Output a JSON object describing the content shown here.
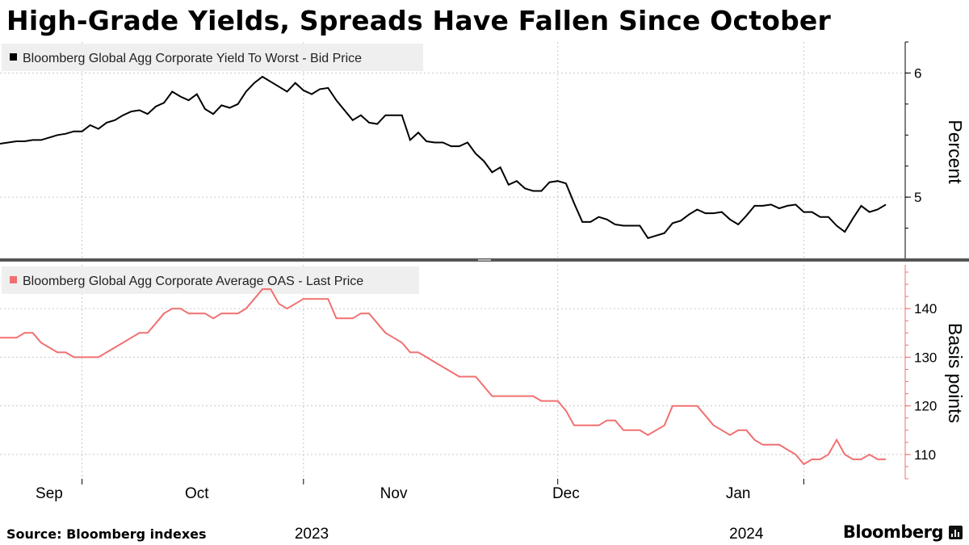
{
  "title": "High-Grade Yields, Spreads Have Fallen Since October",
  "source": "Source: Bloomberg indexes",
  "brand": "Bloomberg",
  "colors": {
    "series1": "#000000",
    "series2": "#f07070",
    "grid": "#c8c8c8",
    "legend_bg": "#efefef"
  },
  "chart_data": [
    {
      "type": "line",
      "title": "",
      "ylabel": "Percent",
      "ylim": [
        4.5,
        6.25
      ],
      "yticks": [
        5,
        6
      ],
      "y_axis_side": "right",
      "grid": true,
      "legend_position": "top-left",
      "x_start": "2023-08-18",
      "series": [
        {
          "name": "Bloomberg Global Agg Corporate Yield To Worst - Bid Price",
          "values": [
            5.43,
            5.44,
            5.45,
            5.45,
            5.46,
            5.46,
            5.48,
            5.5,
            5.51,
            5.53,
            5.53,
            5.58,
            5.55,
            5.6,
            5.62,
            5.66,
            5.69,
            5.7,
            5.67,
            5.73,
            5.76,
            5.85,
            5.81,
            5.78,
            5.83,
            5.71,
            5.67,
            5.74,
            5.72,
            5.75,
            5.85,
            5.92,
            5.97,
            5.93,
            5.89,
            5.85,
            5.92,
            5.86,
            5.83,
            5.87,
            5.88,
            5.78,
            5.7,
            5.62,
            5.66,
            5.6,
            5.59,
            5.66,
            5.66,
            5.66,
            5.46,
            5.52,
            5.45,
            5.44,
            5.44,
            5.41,
            5.41,
            5.44,
            5.35,
            5.29,
            5.2,
            5.24,
            5.1,
            5.13,
            5.07,
            5.05,
            5.05,
            5.12,
            5.13,
            5.11,
            4.95,
            4.8,
            4.8,
            4.84,
            4.82,
            4.78,
            4.77,
            4.77,
            4.77,
            4.67,
            4.69,
            4.71,
            4.79,
            4.81,
            4.86,
            4.9,
            4.87,
            4.87,
            4.88,
            4.82,
            4.78,
            4.85,
            4.93,
            4.93,
            4.94,
            4.91,
            4.93,
            4.94,
            4.88,
            4.88,
            4.84,
            4.84,
            4.77,
            4.72,
            4.83,
            4.93,
            4.88,
            4.9,
            4.94
          ]
        }
      ]
    },
    {
      "type": "line",
      "title": "",
      "ylabel": "Basis points",
      "ylim": [
        105,
        149
      ],
      "yticks": [
        110,
        120,
        130,
        140
      ],
      "y_axis_side": "right",
      "grid": true,
      "legend_position": "top-left",
      "x_start": "2023-08-18",
      "series": [
        {
          "name": "Bloomberg Global Agg Corporate Average OAS - Last Price",
          "values": [
            134,
            134,
            134,
            135,
            135,
            133,
            132,
            131,
            131,
            130,
            130,
            130,
            130,
            131,
            132,
            133,
            134,
            135,
            135,
            137,
            139,
            140,
            140,
            139,
            139,
            139,
            138,
            139,
            139,
            139,
            140,
            142,
            144,
            144,
            141,
            140,
            141,
            142,
            142,
            142,
            142,
            138,
            138,
            138,
            139,
            139,
            137,
            135,
            134,
            133,
            131,
            131,
            130,
            129,
            128,
            127,
            126,
            126,
            126,
            124,
            122,
            122,
            122,
            122,
            122,
            122,
            121,
            121,
            121,
            119,
            116,
            116,
            116,
            116,
            117,
            117,
            115,
            115,
            115,
            114,
            115,
            116,
            120,
            120,
            120,
            120,
            118,
            116,
            115,
            114,
            115,
            115,
            113,
            112,
            112,
            112,
            111,
            110,
            108,
            109,
            109,
            110,
            113,
            110,
            109,
            109,
            110,
            109,
            109
          ]
        }
      ]
    }
  ],
  "x_axis": {
    "month_labels": [
      "Sep",
      "Oct",
      "Nov",
      "Dec",
      "Jan"
    ],
    "month_tick_idx": [
      10,
      37,
      68,
      98,
      129
    ],
    "month_label_idx": [
      6,
      24,
      48,
      69,
      90
    ],
    "year_labels": [
      "2023",
      "2024"
    ],
    "year_label_idx": [
      38,
      91
    ]
  }
}
